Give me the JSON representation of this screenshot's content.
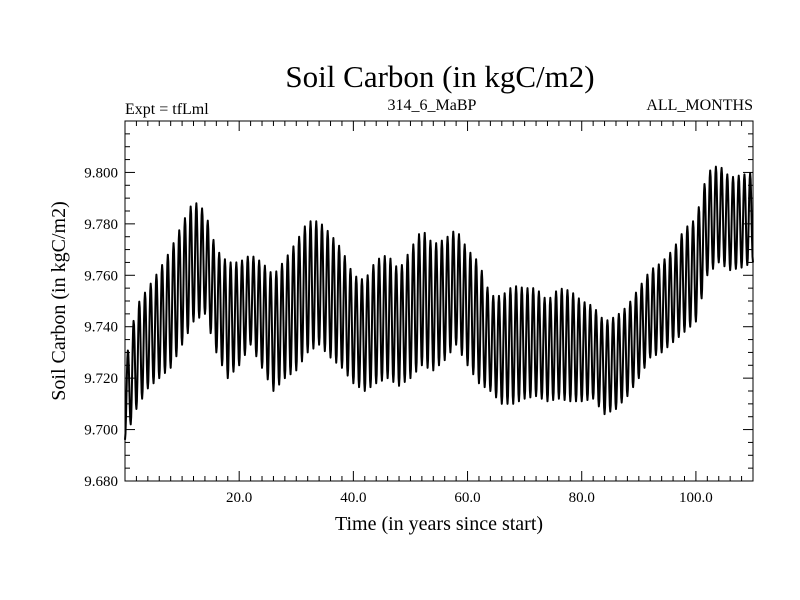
{
  "chart_data": {
    "type": "line",
    "title": "Soil Carbon (in kgC/m2)",
    "subtitle_left": "Expt = tfLml",
    "subtitle_center": "314_6_MaBP",
    "subtitle_right": "ALL_MONTHS",
    "xlabel": "Time (in years since start)",
    "ylabel": "Soil Carbon (in kgC/m2)",
    "xlim": [
      0,
      110
    ],
    "ylim": [
      9.68,
      9.82
    ],
    "x_ticks": [
      20,
      40,
      60,
      80,
      100
    ],
    "x_tick_labels": [
      "20.0",
      "40.0",
      "60.0",
      "80.0",
      "100.0"
    ],
    "y_ticks": [
      9.68,
      9.7,
      9.72,
      9.74,
      9.76,
      9.78,
      9.8
    ],
    "y_tick_labels": [
      "9.680",
      "9.700",
      "9.720",
      "9.740",
      "9.760",
      "9.780",
      "9.800"
    ],
    "series": [
      {
        "name": "Soil Carbon",
        "color": "#000000",
        "cycle_period_years": 1,
        "envelope": {
          "x": [
            0,
            2,
            4,
            6,
            8,
            10,
            12,
            14,
            16,
            18,
            20,
            22,
            24,
            26,
            28,
            30,
            32,
            34,
            36,
            38,
            40,
            42,
            44,
            46,
            48,
            50,
            52,
            54,
            56,
            58,
            60,
            62,
            64,
            66,
            68,
            70,
            72,
            74,
            76,
            78,
            80,
            82,
            84,
            86,
            88,
            90,
            92,
            94,
            96,
            98,
            100,
            102,
            104,
            106,
            108,
            110
          ],
          "upper": [
            9.725,
            9.748,
            9.755,
            9.762,
            9.77,
            9.78,
            9.789,
            9.785,
            9.77,
            9.765,
            9.765,
            9.768,
            9.765,
            9.76,
            9.766,
            9.773,
            9.781,
            9.781,
            9.776,
            9.77,
            9.76,
            9.758,
            9.766,
            9.768,
            9.762,
            9.77,
            9.778,
            9.772,
            9.774,
            9.778,
            9.77,
            9.765,
            9.752,
            9.752,
            9.756,
            9.755,
            9.755,
            9.75,
            9.755,
            9.754,
            9.75,
            9.748,
            9.742,
            9.744,
            9.748,
            9.755,
            9.762,
            9.765,
            9.77,
            9.778,
            9.782,
            9.8,
            9.803,
            9.798,
            9.799,
            9.8
          ],
          "lower": [
            9.696,
            9.708,
            9.716,
            9.72,
            9.724,
            9.733,
            9.742,
            9.745,
            9.73,
            9.72,
            9.725,
            9.733,
            9.724,
            9.715,
            9.72,
            9.723,
            9.73,
            9.733,
            9.728,
            9.724,
            9.718,
            9.715,
            9.718,
            9.72,
            9.717,
            9.72,
            9.725,
            9.723,
            9.727,
            9.733,
            9.725,
            9.718,
            9.715,
            9.71,
            9.71,
            9.712,
            9.713,
            9.711,
            9.712,
            9.711,
            9.711,
            9.712,
            9.706,
            9.708,
            9.713,
            9.72,
            9.728,
            9.73,
            9.734,
            9.738,
            9.742,
            9.76,
            9.765,
            9.762,
            9.763,
            9.765
          ]
        }
      }
    ]
  }
}
